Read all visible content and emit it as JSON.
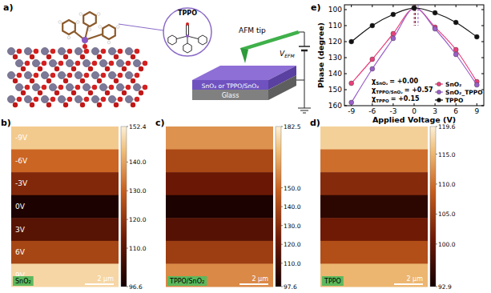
{
  "panel_a": {
    "label": "a)",
    "inset_label": "TPPO",
    "tip_label": "AFM tip",
    "film_label": "SnO₂ or TPPO/SnO₂",
    "substrate_label": "Glass",
    "voltage_label": {
      "text": "V",
      "subscript": "EFM"
    }
  },
  "images": [
    {
      "label": "b)",
      "sample": "SnO₂",
      "voltage_labels": [
        "-9V",
        "-6V",
        "-3V",
        "0V",
        "3V",
        "6V",
        "9V"
      ],
      "bands": [
        146,
        131,
        117,
        98,
        109,
        124,
        148
      ],
      "colorbar": {
        "range": [
          96.6,
          152.4
        ],
        "ticks": [
          152.4,
          {
            "value": 140,
            "label": "140.0"
          },
          {
            "value": 130,
            "label": "130.0"
          },
          {
            "value": 120,
            "label": "120.0"
          },
          {
            "value": 110,
            "label": "110.0"
          },
          96.6
        ]
      },
      "scale_bar": "2 μm"
    },
    {
      "label": "c)",
      "sample": "TPPO/SnO₂",
      "bands": [
        160,
        140,
        122,
        100,
        116,
        136,
        158
      ],
      "colorbar": {
        "range": [
          97.6,
          182.5
        ],
        "ticks": [
          182.5,
          {
            "value": 150,
            "label": "150.0"
          },
          {
            "value": 140,
            "label": "140.0"
          },
          {
            "value": 130,
            "label": "130.0"
          },
          {
            "value": 120,
            "label": "120.0"
          },
          {
            "value": 110,
            "label": "110.0"
          },
          97.6
        ]
      },
      "scale_bar": "2 μm"
    },
    {
      "label": "d)",
      "sample": "TPPO",
      "bands": [
        117,
        110,
        103,
        95,
        101,
        107,
        115
      ],
      "colorbar": {
        "range": [
          92.9,
          119.6
        ],
        "ticks": [
          119.6,
          {
            "value": 115,
            "label": "115.0"
          },
          {
            "value": 110,
            "label": "110.0"
          },
          {
            "value": 105,
            "label": "105.0"
          },
          {
            "value": 100,
            "label": "100.0"
          },
          92.9
        ]
      },
      "scale_bar": "2 μm"
    }
  ],
  "chart_data": {
    "type": "line",
    "label": "e)",
    "x_label": "Applied Voltage (V)",
    "y_label": "Phase (degree)",
    "x": [
      -9,
      -6,
      -3,
      0,
      3,
      6,
      9
    ],
    "xlim": [
      -10,
      10
    ],
    "xticks": [
      -9,
      -6,
      -3,
      0,
      3,
      6,
      9
    ],
    "ylim": [
      160,
      97
    ],
    "yticks": [
      100,
      110,
      120,
      130,
      140,
      150,
      160
    ],
    "grid": false,
    "legend": "lower right",
    "marker": "circle",
    "series": [
      {
        "name": "SnO₂",
        "color": "#e8407a",
        "values": [
          146,
          131,
          115,
          99,
          111,
          125,
          145
        ]
      },
      {
        "name": "SnO₂_TPPO",
        "color": "#9a5fc8",
        "values": [
          158,
          137,
          118,
          99,
          112,
          128,
          147
        ]
      },
      {
        "name": "TPPO",
        "color": "#111111",
        "values": [
          120,
          110,
          103,
          99,
          102,
          108,
          117
        ]
      }
    ],
    "annotations": [
      {
        "symbol": "χ",
        "subscript": "SnO₂",
        "label": "= +0.00",
        "value": 0.0,
        "color": "#e8407a"
      },
      {
        "symbol": "χ",
        "subscript": "TPPO/SnO₂",
        "label": "= +0.57",
        "value": 0.57,
        "color": "#9a5fc8"
      },
      {
        "symbol": "χ",
        "subscript": "TPPO",
        "label": "= +0.15",
        "value": 0.15,
        "color": "#111111"
      }
    ]
  }
}
